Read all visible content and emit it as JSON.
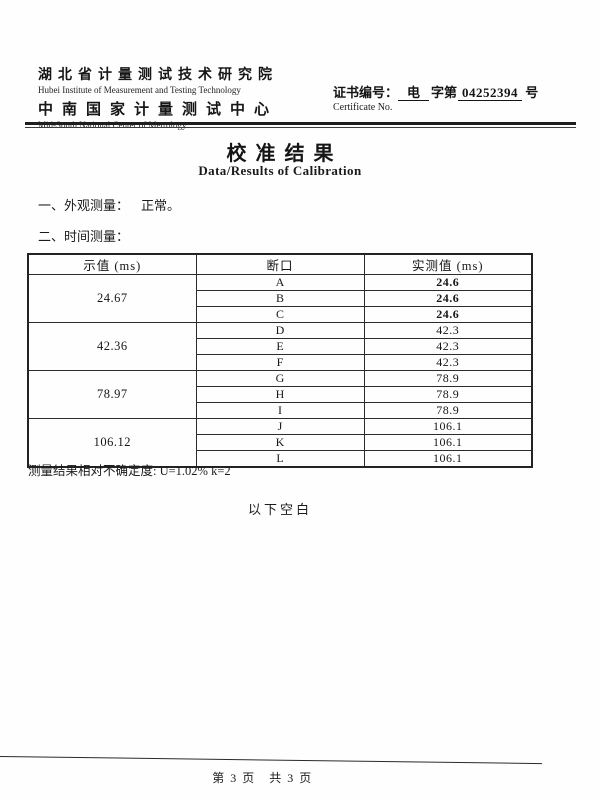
{
  "header": {
    "org_cn_line1": "湖北省计量测试技术研究院",
    "org_en_line1": "Hubei Institute of Measurement and Testing Technology",
    "org_cn_line2": "中南国家计量测试中心",
    "org_en_line2": "Mid-South National Center of Metrology",
    "cert_label_cn": "证书编号：",
    "cert_type": "电",
    "cert_infix": "字第",
    "cert_number": "04252394",
    "cert_suffix": "号",
    "cert_label_en": "Certificate No."
  },
  "title": {
    "cn": "校准结果",
    "en": "Data/Results of Calibration"
  },
  "sections": [
    {
      "label": "一、外观测量：",
      "value": "正常。"
    },
    {
      "label": "二、时间测量：",
      "value": ""
    }
  ],
  "table": {
    "headers": [
      "示值 (ms)",
      "断口",
      "实测值 (ms)"
    ],
    "groups": [
      {
        "indicated": "24.67",
        "rows": [
          [
            "A",
            "24.6"
          ],
          [
            "B",
            "24.6"
          ],
          [
            "C",
            "24.6"
          ]
        ]
      },
      {
        "indicated": "42.36",
        "rows": [
          [
            "D",
            "42.3"
          ],
          [
            "E",
            "42.3"
          ],
          [
            "F",
            "42.3"
          ]
        ]
      },
      {
        "indicated": "78.97",
        "rows": [
          [
            "G",
            "78.9"
          ],
          [
            "H",
            "78.9"
          ],
          [
            "I",
            "78.9"
          ]
        ]
      },
      {
        "indicated": "106.12",
        "rows": [
          [
            "J",
            "106.1"
          ],
          [
            "K",
            "106.1"
          ],
          [
            "L",
            "106.1"
          ]
        ]
      }
    ]
  },
  "uncertainty_note": "测量结果相对不确定度: U=1.02% k=2",
  "blank_note": "以下空白",
  "footer": {
    "page_info": "第 3 页　共 3 页"
  }
}
